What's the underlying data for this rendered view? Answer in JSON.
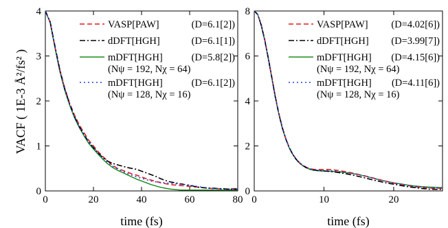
{
  "y_axis_title": "VACF ( 1E-3 Å²/fs² )",
  "colors": {
    "vasp": "#e41a1c",
    "ddft": "#000000",
    "mdft192": "#1f8a1f",
    "mdft128": "#1f3fe6"
  },
  "chart_data": [
    {
      "type": "line",
      "xlabel": "time (fs)",
      "xlim": [
        0,
        80
      ],
      "ylim": [
        0,
        4
      ],
      "xticks": [
        "0",
        "20",
        "40",
        "60",
        "80"
      ],
      "yticks": [
        "0",
        "1",
        "2",
        "3",
        "4"
      ],
      "grid": false,
      "legend_placement": "top-right",
      "series": [
        {
          "name": "VASP[PAW]",
          "d_label": "(D=6.1[2])",
          "param_label": "",
          "style": "dashed",
          "color_key": "vasp",
          "x": [
            0,
            2,
            4,
            6,
            8,
            10,
            12,
            14,
            16,
            18,
            20,
            22,
            24,
            26,
            28,
            30,
            32,
            34,
            36,
            38,
            40,
            42,
            44,
            46,
            48,
            50,
            52,
            54,
            56,
            58,
            60,
            62,
            64,
            66,
            68,
            70,
            72,
            74,
            76,
            78,
            80
          ],
          "values": [
            4.0,
            3.75,
            3.2,
            2.7,
            2.3,
            1.97,
            1.7,
            1.48,
            1.3,
            1.13,
            1.0,
            0.87,
            0.76,
            0.66,
            0.57,
            0.5,
            0.46,
            0.42,
            0.38,
            0.35,
            0.31,
            0.27,
            0.24,
            0.21,
            0.18,
            0.16,
            0.14,
            0.13,
            0.12,
            0.11,
            0.1,
            0.09,
            0.08,
            0.07,
            0.06,
            0.05,
            0.05,
            0.04,
            0.04,
            0.05,
            0.05
          ]
        },
        {
          "name": "dDFT[HGH]",
          "d_label": "(D=6.1[1])",
          "param_label": "",
          "style": "dashdot",
          "color_key": "ddft",
          "x": [
            0,
            2,
            4,
            6,
            8,
            10,
            12,
            14,
            16,
            18,
            20,
            22,
            24,
            26,
            28,
            30,
            32,
            34,
            36,
            38,
            40,
            42,
            44,
            46,
            48,
            50,
            52,
            54,
            56,
            58,
            60,
            62,
            64,
            66,
            68,
            70,
            72,
            74,
            76,
            78,
            80
          ],
          "values": [
            4.0,
            3.76,
            3.22,
            2.7,
            2.28,
            1.95,
            1.67,
            1.44,
            1.26,
            1.09,
            0.96,
            0.84,
            0.74,
            0.66,
            0.61,
            0.58,
            0.55,
            0.52,
            0.5,
            0.48,
            0.44,
            0.4,
            0.36,
            0.32,
            0.27,
            0.23,
            0.2,
            0.18,
            0.16,
            0.14,
            0.12,
            0.1,
            0.08,
            0.07,
            0.06,
            0.06,
            0.05,
            0.05,
            0.04,
            0.04,
            0.04
          ]
        },
        {
          "name": "mDFT[HGH]",
          "d_label": "(D=5.8[2])",
          "param_label": "(Nψ = 192, Nχ = 64)",
          "style": "solid",
          "color_key": "mdft192",
          "x": [
            0,
            2,
            4,
            6,
            8,
            10,
            12,
            14,
            16,
            18,
            20,
            22,
            24,
            26,
            28,
            30,
            32,
            34,
            36,
            38,
            40,
            42,
            44,
            46,
            48,
            50,
            52,
            54,
            56,
            58,
            60,
            62,
            64,
            66,
            68,
            70,
            72,
            74,
            76,
            78,
            80
          ],
          "values": [
            4.0,
            3.74,
            3.18,
            2.66,
            2.25,
            1.92,
            1.64,
            1.42,
            1.23,
            1.06,
            0.93,
            0.81,
            0.7,
            0.6,
            0.52,
            0.46,
            0.41,
            0.36,
            0.31,
            0.26,
            0.22,
            0.18,
            0.14,
            0.11,
            0.08,
            0.06,
            0.04,
            0.03,
            0.02,
            0.02,
            0.02,
            0.02,
            0.02,
            0.02,
            0.02,
            0.02,
            0.02,
            0.02,
            0.02,
            0.02,
            0.02
          ]
        },
        {
          "name": "mDFT[HGH]",
          "d_label": "(D=6.1[2])",
          "param_label": "(Nψ = 128, Nχ = 16)",
          "style": "dotted",
          "color_key": "mdft128",
          "x": [
            0,
            2,
            4,
            6,
            8,
            10,
            12,
            14,
            16,
            18,
            20,
            22,
            24,
            26,
            28,
            30,
            32,
            34,
            36,
            38,
            40,
            42,
            44,
            46,
            48,
            50,
            52,
            54,
            56,
            58,
            60,
            62,
            64,
            66,
            68,
            70,
            72,
            74,
            76,
            78,
            80
          ],
          "values": [
            4.0,
            3.75,
            3.2,
            2.68,
            2.27,
            1.94,
            1.66,
            1.44,
            1.26,
            1.1,
            0.97,
            0.84,
            0.73,
            0.63,
            0.55,
            0.49,
            0.44,
            0.39,
            0.35,
            0.31,
            0.28,
            0.25,
            0.22,
            0.2,
            0.19,
            0.18,
            0.17,
            0.16,
            0.15,
            0.14,
            0.13,
            0.11,
            0.09,
            0.08,
            0.06,
            0.05,
            0.05,
            0.04,
            0.04,
            0.04,
            0.04
          ]
        }
      ]
    },
    {
      "type": "line",
      "xlabel": "time (fs)",
      "xlim": [
        0,
        27
      ],
      "ylim": [
        0,
        8
      ],
      "xticks": [
        "0",
        "10",
        "20"
      ],
      "yticks": [
        "0",
        "2",
        "4",
        "6",
        "8"
      ],
      "grid": false,
      "legend_placement": "top-right",
      "series": [
        {
          "name": "VASP[PAW]",
          "d_label": "(D=4.02[6])",
          "param_label": "",
          "style": "dashed",
          "color_key": "vasp",
          "x": [
            0,
            0.5,
            1,
            1.5,
            2,
            2.5,
            3,
            3.5,
            4,
            4.5,
            5,
            5.5,
            6,
            6.5,
            7,
            7.5,
            8,
            8.5,
            9,
            9.5,
            10,
            11,
            12,
            13,
            14,
            15,
            16,
            17,
            18,
            19,
            20,
            21,
            22,
            23,
            24,
            25,
            26,
            27
          ],
          "values": [
            8.0,
            7.85,
            7.4,
            6.75,
            5.95,
            5.1,
            4.25,
            3.5,
            2.85,
            2.35,
            1.95,
            1.65,
            1.42,
            1.25,
            1.13,
            1.05,
            0.99,
            0.96,
            0.95,
            0.95,
            0.96,
            0.95,
            0.91,
            0.86,
            0.8,
            0.73,
            0.66,
            0.58,
            0.5,
            0.42,
            0.35,
            0.29,
            0.24,
            0.19,
            0.15,
            0.13,
            0.12,
            0.12
          ]
        },
        {
          "name": "dDFT[HGH]",
          "d_label": "(D=3.99[7])",
          "param_label": "",
          "style": "dashdot",
          "color_key": "ddft",
          "x": [
            0,
            0.5,
            1,
            1.5,
            2,
            2.5,
            3,
            3.5,
            4,
            4.5,
            5,
            5.5,
            6,
            6.5,
            7,
            7.5,
            8,
            8.5,
            9,
            9.5,
            10,
            11,
            12,
            13,
            14,
            15,
            16,
            17,
            18,
            19,
            20,
            21,
            22,
            23,
            24,
            25,
            26,
            27
          ],
          "values": [
            8.0,
            7.85,
            7.38,
            6.72,
            5.92,
            5.07,
            4.22,
            3.47,
            2.83,
            2.33,
            1.94,
            1.64,
            1.41,
            1.24,
            1.12,
            1.03,
            0.97,
            0.93,
            0.91,
            0.9,
            0.89,
            0.86,
            0.82,
            0.77,
            0.71,
            0.64,
            0.57,
            0.49,
            0.42,
            0.35,
            0.3,
            0.24,
            0.19,
            0.15,
            0.11,
            0.08,
            0.07,
            0.07
          ]
        },
        {
          "name": "mDFT[HGH]",
          "d_label": "(D=4.15[6])",
          "param_label": "(Nψ = 192, Nχ = 64)",
          "style": "solid",
          "color_key": "mdft192",
          "x": [
            0,
            0.5,
            1,
            1.5,
            2,
            2.5,
            3,
            3.5,
            4,
            4.5,
            5,
            5.5,
            6,
            6.5,
            7,
            7.5,
            8,
            8.5,
            9,
            9.5,
            10,
            11,
            12,
            13,
            14,
            15,
            16,
            17,
            18,
            19,
            20,
            21,
            22,
            23,
            24,
            25,
            26,
            27
          ],
          "values": [
            8.0,
            7.84,
            7.36,
            6.7,
            5.9,
            5.05,
            4.2,
            3.45,
            2.82,
            2.32,
            1.93,
            1.63,
            1.4,
            1.23,
            1.11,
            1.02,
            0.96,
            0.92,
            0.9,
            0.89,
            0.88,
            0.87,
            0.85,
            0.82,
            0.78,
            0.72,
            0.65,
            0.57,
            0.49,
            0.42,
            0.36,
            0.31,
            0.26,
            0.22,
            0.19,
            0.17,
            0.16,
            0.15
          ]
        },
        {
          "name": "mDFT[HGH]",
          "d_label": "(D=4.11[6])",
          "param_label": "(Nψ = 128, Nχ = 16)",
          "style": "dotted",
          "color_key": "mdft128",
          "x": [
            0,
            0.5,
            1,
            1.5,
            2,
            2.5,
            3,
            3.5,
            4,
            4.5,
            5,
            5.5,
            6,
            6.5,
            7,
            7.5,
            8,
            8.5,
            9,
            9.5,
            10,
            11,
            12,
            13,
            14,
            15,
            16,
            17,
            18,
            19,
            20,
            21,
            22,
            23,
            24,
            25,
            26,
            27
          ],
          "values": [
            8.0,
            7.85,
            7.38,
            6.73,
            5.93,
            5.08,
            4.23,
            3.48,
            2.84,
            2.34,
            1.95,
            1.65,
            1.42,
            1.25,
            1.13,
            1.04,
            0.98,
            0.94,
            0.92,
            0.91,
            0.91,
            0.9,
            0.87,
            0.83,
            0.78,
            0.72,
            0.65,
            0.57,
            0.49,
            0.42,
            0.35,
            0.29,
            0.24,
            0.2,
            0.17,
            0.15,
            0.14,
            0.13
          ]
        }
      ]
    }
  ]
}
